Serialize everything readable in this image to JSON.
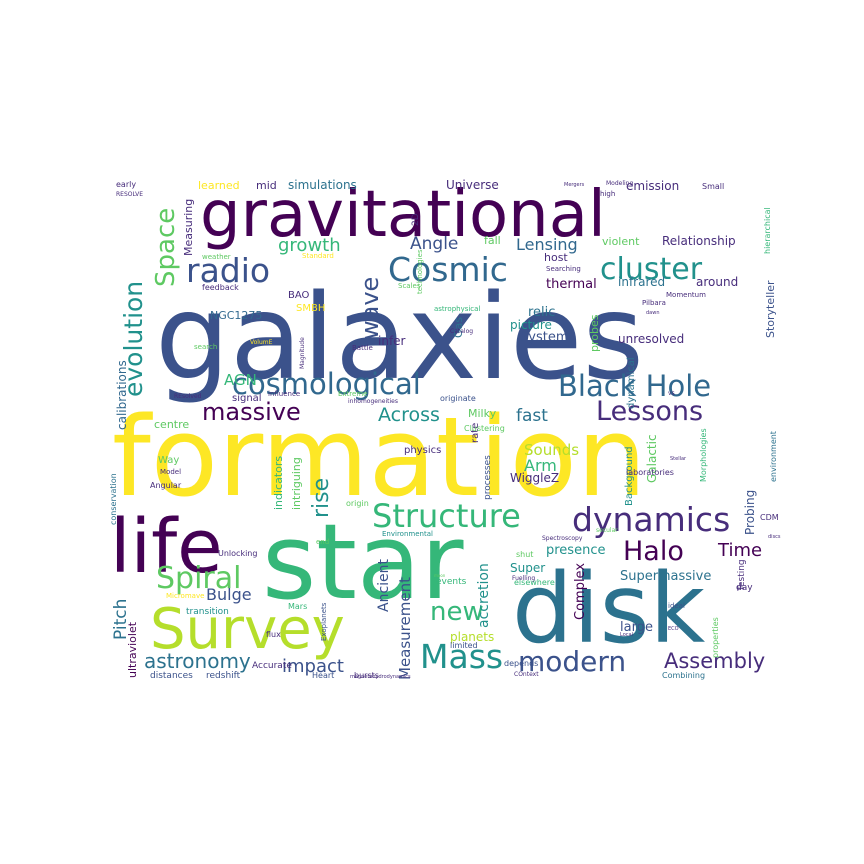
{
  "colors": {
    "background": "#ffffff",
    "c0": "#440154",
    "c1": "#3b528b",
    "c2": "#21918c",
    "c3": "#5ec962",
    "c4": "#fde725",
    "c5": "#31688e",
    "c6": "#35b779",
    "c7": "#2c728e",
    "c8": "#b5de2b",
    "c9": "#472d7b"
  },
  "words": [
    {
      "text": "galaxies",
      "c": "c1"
    },
    {
      "text": "formation",
      "c": "c4"
    },
    {
      "text": "star",
      "c": "c6"
    },
    {
      "text": "disk",
      "c": "c7"
    },
    {
      "text": "gravitational",
      "c": "c0"
    },
    {
      "text": "life",
      "c": "c0"
    },
    {
      "text": "Survey",
      "c": "c8"
    },
    {
      "text": "Black Hole",
      "c": "c5"
    },
    {
      "text": "Cosmic",
      "c": "c5"
    },
    {
      "text": "cosmological",
      "c": "c5"
    },
    {
      "text": "dynamics",
      "c": "c9"
    },
    {
      "text": "Structure",
      "c": "c6"
    },
    {
      "text": "radio",
      "c": "c1"
    },
    {
      "text": "cluster",
      "c": "c2"
    },
    {
      "text": "Mass",
      "c": "c2"
    },
    {
      "text": "Spiral",
      "c": "c3"
    },
    {
      "text": "Lessons",
      "c": "c9"
    },
    {
      "text": "massive",
      "c": "c0"
    },
    {
      "text": "modern",
      "c": "c1"
    },
    {
      "text": "Halo",
      "c": "c0"
    },
    {
      "text": "new",
      "c": "c6"
    },
    {
      "text": "Space",
      "c": "c3"
    },
    {
      "text": "evolution",
      "c": "c2"
    },
    {
      "text": "wave",
      "c": "c1"
    },
    {
      "text": "rise",
      "c": "c2"
    },
    {
      "text": "astronomy",
      "c": "c7"
    },
    {
      "text": "Assembly",
      "c": "c9"
    },
    {
      "text": "impact",
      "c": "c1"
    },
    {
      "text": "Across",
      "c": "c2"
    },
    {
      "text": "Time",
      "c": "c0"
    },
    {
      "text": "growth",
      "c": "c6"
    },
    {
      "text": "Angle",
      "c": "c1"
    },
    {
      "text": "Lensing",
      "c": "c5"
    },
    {
      "text": "fast",
      "c": "c7"
    },
    {
      "text": "Pitch",
      "c": "c7"
    },
    {
      "text": "Bulge",
      "c": "c1"
    },
    {
      "text": "Measurement",
      "c": "c1"
    },
    {
      "text": "Ancient",
      "c": "c1"
    },
    {
      "text": "accretion",
      "c": "c2"
    },
    {
      "text": "Arm",
      "c": "c6"
    },
    {
      "text": "Sounds",
      "c": "c8"
    },
    {
      "text": "Supermassive",
      "c": "c7"
    },
    {
      "text": "presence",
      "c": "c2"
    },
    {
      "text": "Super",
      "c": "c2"
    },
    {
      "text": "Complex",
      "c": "c0"
    },
    {
      "text": "large",
      "c": "c1"
    },
    {
      "text": "planets",
      "c": "c8"
    },
    {
      "text": "AGN",
      "c": "c6"
    },
    {
      "text": "unresolved",
      "c": "c9"
    },
    {
      "text": "System",
      "c": "c1"
    },
    {
      "text": "picture",
      "c": "c2"
    },
    {
      "text": "relic",
      "c": "c7"
    },
    {
      "text": "infer",
      "c": "c9"
    },
    {
      "text": "thermal",
      "c": "c0"
    },
    {
      "text": "infrared",
      "c": "c7"
    },
    {
      "text": "around",
      "c": "c9"
    },
    {
      "text": "Relationship",
      "c": "c9"
    },
    {
      "text": "violent",
      "c": "c3"
    },
    {
      "text": "fall",
      "c": "c3"
    },
    {
      "text": "host",
      "c": "c9"
    },
    {
      "text": "emission",
      "c": "c9"
    },
    {
      "text": "Universe",
      "c": "c9"
    },
    {
      "text": "simulations",
      "c": "c7"
    },
    {
      "text": "mid",
      "c": "c9"
    },
    {
      "text": "learned",
      "c": "c4"
    },
    {
      "text": "Measuring",
      "c": "c9"
    },
    {
      "text": "calibrations",
      "c": "c5"
    },
    {
      "text": "ultraviolet",
      "c": "c0"
    },
    {
      "text": "centre",
      "c": "c3"
    },
    {
      "text": "Way",
      "c": "c3"
    },
    {
      "text": "Milky",
      "c": "c3"
    },
    {
      "text": "signal",
      "c": "c9"
    },
    {
      "text": "NGC1275",
      "c": "c5"
    },
    {
      "text": "SMBH",
      "c": "c4"
    },
    {
      "text": "BAO",
      "c": "c9"
    },
    {
      "text": "Gas",
      "c": "c7"
    },
    {
      "text": "probes",
      "c": "c3"
    },
    {
      "text": "dynamical",
      "c": "c7"
    },
    {
      "text": "Storyteller",
      "c": "c1"
    },
    {
      "text": "Galactic",
      "c": "c3"
    },
    {
      "text": "Probing",
      "c": "c1"
    },
    {
      "text": "WiggleZ",
      "c": "c9"
    },
    {
      "text": "intriguing",
      "c": "c3"
    },
    {
      "text": "indicators",
      "c": "c6"
    },
    {
      "text": "physics",
      "c": "c9"
    },
    {
      "text": "rate",
      "c": "c9"
    },
    {
      "text": "processes",
      "c": "c1"
    },
    {
      "text": "Background",
      "c": "c2"
    },
    {
      "text": "distances",
      "c": "c1"
    },
    {
      "text": "redshift",
      "c": "c1"
    },
    {
      "text": "Heart",
      "c": "c1"
    },
    {
      "text": "bursts",
      "c": "c9"
    },
    {
      "text": "depends",
      "c": "c1"
    },
    {
      "text": "Accurate",
      "c": "c9"
    },
    {
      "text": "transition",
      "c": "c2"
    },
    {
      "text": "events",
      "c": "c6"
    },
    {
      "text": "limited",
      "c": "c1"
    },
    {
      "text": "flux",
      "c": "c9"
    },
    {
      "text": "elsewhere",
      "c": "c6"
    },
    {
      "text": "shut",
      "c": "c3"
    },
    {
      "text": "CDM",
      "c": "c9"
    },
    {
      "text": "day",
      "c": "c9"
    },
    {
      "text": "Testing",
      "c": "c9"
    },
    {
      "text": "environment",
      "c": "c7"
    },
    {
      "text": "Morphologies",
      "c": "c6"
    },
    {
      "text": "laboratories",
      "c": "c9"
    },
    {
      "text": "Combining",
      "c": "c7"
    },
    {
      "text": "properties",
      "c": "c3"
    },
    {
      "text": "ideal",
      "c": "c1"
    },
    {
      "text": "Fuelling",
      "c": "c9"
    },
    {
      "text": "secular",
      "c": "c3"
    },
    {
      "text": "Spectroscopy",
      "c": "c9"
    },
    {
      "text": "Environmental",
      "c": "c2"
    },
    {
      "text": "origin",
      "c": "c3"
    },
    {
      "text": "end",
      "c": "c3"
    },
    {
      "text": "Mars",
      "c": "c6"
    },
    {
      "text": "Exoplanets",
      "c": "c1"
    },
    {
      "text": "Unlocking",
      "c": "c9"
    },
    {
      "text": "Micromave",
      "c": "c4"
    },
    {
      "text": "Angular",
      "c": "c9"
    },
    {
      "text": "Model",
      "c": "c9"
    },
    {
      "text": "conservation",
      "c": "c7"
    },
    {
      "text": "influence",
      "c": "c9"
    },
    {
      "text": "Extreme",
      "c": "c3"
    },
    {
      "text": "inhomogeneities",
      "c": "c9"
    },
    {
      "text": "originate",
      "c": "c1"
    },
    {
      "text": "Clustering",
      "c": "c3"
    },
    {
      "text": "astrophysical",
      "c": "c6"
    },
    {
      "text": "Scales",
      "c": "c3"
    },
    {
      "text": "Searching",
      "c": "c9"
    },
    {
      "text": "technologies",
      "c": "c3"
    },
    {
      "text": "Standard",
      "c": "c4"
    },
    {
      "text": "weather",
      "c": "c3"
    },
    {
      "text": "feedback",
      "c": "c9"
    },
    {
      "text": "search",
      "c": "c3"
    },
    {
      "text": "Magnitude",
      "c": "c9"
    },
    {
      "text": "VolumE",
      "c": "c4"
    },
    {
      "text": "Battle",
      "c": "c9"
    },
    {
      "text": "Catalog",
      "c": "c9"
    },
    {
      "text": "dawn",
      "c": "c9"
    },
    {
      "text": "hierarchical",
      "c": "c6"
    },
    {
      "text": "Small",
      "c": "c9"
    },
    {
      "text": "Momentum",
      "c": "c9"
    },
    {
      "text": "Pilbara",
      "c": "c9"
    },
    {
      "text": "high",
      "c": "c9"
    },
    {
      "text": "Modeling",
      "c": "c9"
    },
    {
      "text": "Mergers",
      "c": "c9"
    },
    {
      "text": "2D",
      "c": "c9"
    },
    {
      "text": "early",
      "c": "c9"
    },
    {
      "text": "RESOLVE",
      "c": "c9"
    },
    {
      "text": "REsolved",
      "c": "c9"
    },
    {
      "text": "vs",
      "c": "c9"
    },
    {
      "text": "Stellar",
      "c": "c9"
    },
    {
      "text": "discs",
      "c": "c9"
    },
    {
      "text": "magnetohydrodynamics",
      "c": "c9"
    },
    {
      "text": "COntext",
      "c": "c9"
    },
    {
      "text": "ECO",
      "c": "c9"
    },
    {
      "text": "Local",
      "c": "c9"
    },
    {
      "text": "moon",
      "c": "c3"
    }
  ]
}
